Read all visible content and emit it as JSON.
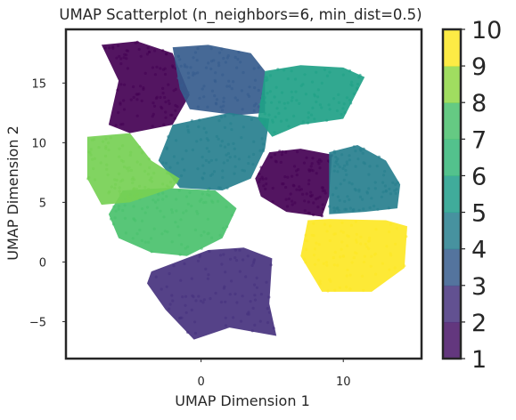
{
  "chart_data": {
    "type": "scatter",
    "title": "UMAP Scatterplot (n_neighbors=6, min_dist=0.5)",
    "xlabel": "UMAP Dimension 1",
    "ylabel": "UMAP Dimension 2",
    "xlim": [
      -9.5,
      15.5
    ],
    "ylim": [
      -8.1,
      19.5
    ],
    "xticks": [
      0,
      10
    ],
    "yticks": [
      -5,
      0,
      5,
      10,
      15
    ],
    "colormap": "viridis",
    "marker_alpha": 0.6,
    "colorbar": {
      "range": [
        1,
        10
      ],
      "ticks": [
        1,
        2,
        3,
        4,
        5,
        6,
        7,
        8,
        9,
        10
      ],
      "levels": 9,
      "placement": "right"
    },
    "clusters": [
      {
        "label": 1,
        "color": "#440154",
        "center": [
          -4.0,
          14.0
        ],
        "extent": [
          [
            -7.0,
            18.2
          ],
          [
            -5.8,
            15.2
          ],
          [
            -6.5,
            11.5
          ],
          [
            -5.0,
            10.8
          ],
          [
            -2.0,
            11.5
          ],
          [
            -0.8,
            14.0
          ],
          [
            -2.0,
            17.5
          ],
          [
            -4.5,
            18.5
          ]
        ]
      },
      {
        "label": 2,
        "color": "#46327e",
        "center": [
          2.5,
          -2.5
        ],
        "extent": [
          [
            -3.5,
            -0.8
          ],
          [
            0.5,
            1.0
          ],
          [
            3.0,
            1.2
          ],
          [
            5.0,
            0.3
          ],
          [
            4.8,
            -3.5
          ],
          [
            5.3,
            -6.2
          ],
          [
            2.0,
            -5.5
          ],
          [
            -0.5,
            -6.5
          ],
          [
            -2.5,
            -4.0
          ],
          [
            -3.8,
            -1.8
          ]
        ]
      },
      {
        "label": 3,
        "color": "#365c8d",
        "center": [
          1.5,
          15.5
        ],
        "extent": [
          [
            -2.0,
            18.0
          ],
          [
            0.5,
            18.2
          ],
          [
            3.5,
            17.5
          ],
          [
            4.5,
            16.0
          ],
          [
            4.5,
            12.5
          ],
          [
            2.5,
            12.3
          ],
          [
            -0.8,
            12.8
          ],
          [
            -1.5,
            14.5
          ]
        ]
      },
      {
        "label": 4,
        "color": "#277f8e",
        "center": [
          1.5,
          9.5
        ],
        "extent": [
          [
            -2.0,
            11.5
          ],
          [
            2.0,
            12.5
          ],
          [
            4.8,
            12.0
          ],
          [
            4.5,
            9.5
          ],
          [
            3.5,
            7.0
          ],
          [
            1.5,
            6.0
          ],
          [
            -1.5,
            6.2
          ],
          [
            -3.0,
            8.5
          ]
        ]
      },
      {
        "label": 5,
        "color": "#440154",
        "center": [
          6.5,
          6.5
        ],
        "extent": [
          [
            4.8,
            9.2
          ],
          [
            7.0,
            9.5
          ],
          [
            9.2,
            9.0
          ],
          [
            9.0,
            5.5
          ],
          [
            8.5,
            3.8
          ],
          [
            6.0,
            4.2
          ],
          [
            4.2,
            5.5
          ],
          [
            3.8,
            7.0
          ]
        ]
      },
      {
        "label": 6,
        "color": "#277f8e",
        "center": [
          11.0,
          6.5
        ],
        "extent": [
          [
            9.0,
            9.2
          ],
          [
            11.0,
            9.8
          ],
          [
            13.0,
            8.5
          ],
          [
            14.0,
            6.5
          ],
          [
            13.8,
            4.5
          ],
          [
            11.5,
            4.2
          ],
          [
            9.0,
            4.0
          ]
        ]
      },
      {
        "label": 7,
        "color": "#1fa187",
        "center": [
          7.5,
          13.5
        ],
        "extent": [
          [
            4.5,
            16.0
          ],
          [
            7.0,
            16.5
          ],
          [
            10.0,
            16.3
          ],
          [
            11.5,
            15.5
          ],
          [
            10.0,
            12.0
          ],
          [
            7.0,
            11.5
          ],
          [
            5.0,
            10.5
          ],
          [
            4.0,
            12.0
          ]
        ]
      },
      {
        "label": 8,
        "color": "#4ac16d",
        "center": [
          -3.5,
          3.5
        ],
        "extent": [
          [
            -5.5,
            6.0
          ],
          [
            -2.5,
            6.2
          ],
          [
            1.0,
            6.0
          ],
          [
            2.5,
            4.5
          ],
          [
            1.5,
            2.0
          ],
          [
            -1.0,
            0.5
          ],
          [
            -3.5,
            0.8
          ],
          [
            -5.8,
            2.0
          ],
          [
            -6.5,
            4.0
          ]
        ]
      },
      {
        "label": 9,
        "color": "#76d054",
        "center": [
          -6.5,
          7.5
        ],
        "extent": [
          [
            -8.0,
            10.5
          ],
          [
            -5.0,
            10.8
          ],
          [
            -3.5,
            8.5
          ],
          [
            -1.5,
            7.0
          ],
          [
            -2.0,
            6.2
          ],
          [
            -5.0,
            5.0
          ],
          [
            -7.0,
            4.8
          ],
          [
            -8.0,
            7.0
          ]
        ]
      },
      {
        "label": 10,
        "color": "#fde725",
        "center": [
          11.0,
          1.0
        ],
        "extent": [
          [
            7.5,
            3.5
          ],
          [
            9.0,
            3.6
          ],
          [
            13.0,
            3.5
          ],
          [
            14.5,
            3.0
          ],
          [
            14.3,
            -0.5
          ],
          [
            12.0,
            -2.5
          ],
          [
            8.5,
            -2.5
          ],
          [
            7.0,
            0.5
          ]
        ]
      }
    ]
  }
}
